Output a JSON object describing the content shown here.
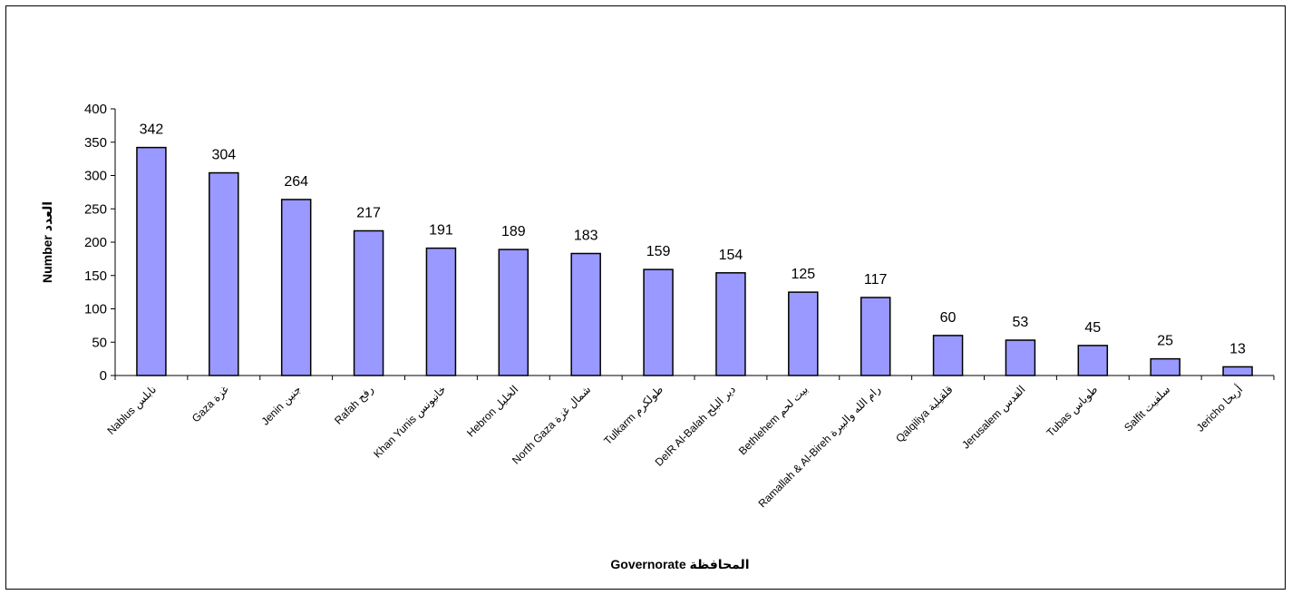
{
  "chart_data": {
    "type": "bar",
    "title": "",
    "xlabel": "Governorate المحافظة",
    "ylabel": "Number العدد",
    "ylim": [
      0,
      400
    ],
    "yticks": [
      0,
      50,
      100,
      150,
      200,
      250,
      300,
      350,
      400
    ],
    "grid": false,
    "legend": "none",
    "bar_color": "#9999ff",
    "categories": [
      "Nablus نابلس",
      "Gaza غزة",
      "Jenin جنين",
      "Rafah رفح",
      "Khan Yunis خانيونس",
      "Hebron الخليل",
      "North Gaza شمال غزة",
      "Tulkarm طولكرم",
      "DeIR Al-Balah دير البلح",
      "Bethlehem بيت لحم",
      "Ramallah & Al-Bireh رام الله والبيرة",
      "Qalqiliya قلقيلية",
      "Jerusalem القدس",
      "Tubas طوباس",
      "Salfit سلفيت",
      "Jericho أريحا"
    ],
    "values": [
      342,
      304,
      264,
      217,
      191,
      189,
      183,
      159,
      154,
      125,
      117,
      60,
      53,
      45,
      25,
      13
    ]
  }
}
